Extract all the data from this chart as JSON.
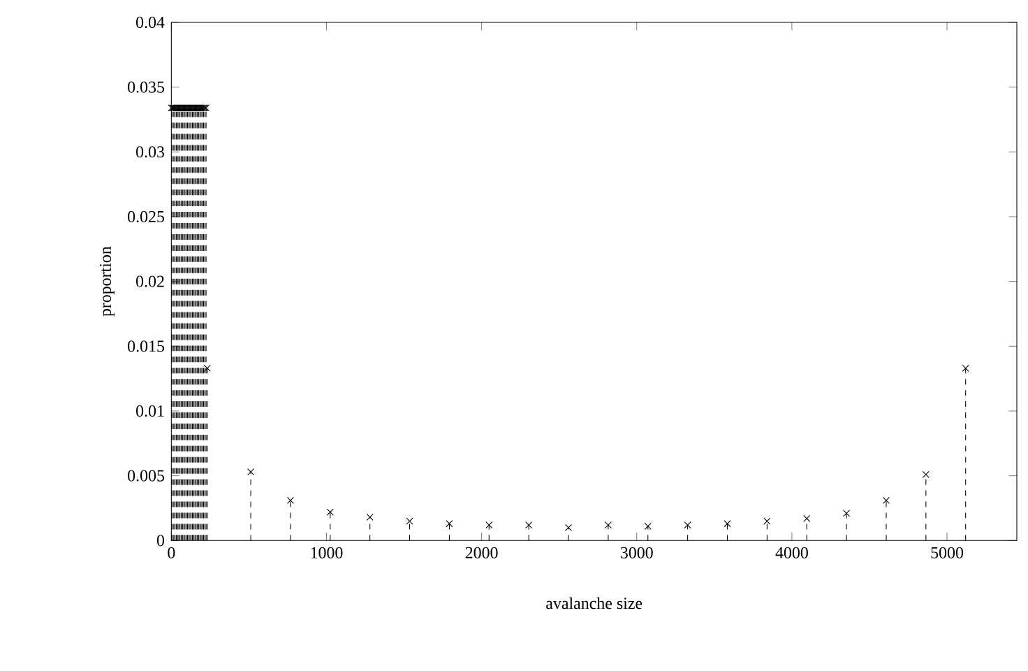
{
  "chart_data": {
    "type": "lollipop",
    "xlabel": "avalanche size",
    "ylabel": "proportion",
    "x": [
      0,
      8,
      16,
      24,
      32,
      40,
      48,
      56,
      64,
      72,
      80,
      88,
      96,
      104,
      112,
      120,
      128,
      136,
      144,
      152,
      160,
      168,
      176,
      184,
      192,
      200,
      208,
      216,
      224,
      232,
      512,
      768,
      1024,
      1280,
      1536,
      1792,
      2048,
      2304,
      2560,
      2816,
      3072,
      3328,
      3584,
      3840,
      4096,
      4352,
      4608,
      4864,
      5120
    ],
    "values": [
      0.0334,
      0.0334,
      0.0334,
      0.0334,
      0.0334,
      0.0334,
      0.0334,
      0.0334,
      0.0334,
      0.0334,
      0.0334,
      0.0334,
      0.0334,
      0.0334,
      0.0334,
      0.0334,
      0.0334,
      0.0334,
      0.0334,
      0.0334,
      0.0334,
      0.0334,
      0.0334,
      0.0334,
      0.0334,
      0.0334,
      0.0334,
      0.0334,
      0.0334,
      0.0133,
      0.0053,
      0.0031,
      0.0022,
      0.0018,
      0.0015,
      0.0013,
      0.0012,
      0.0012,
      0.001,
      0.0012,
      0.0011,
      0.0012,
      0.0013,
      0.0015,
      0.0017,
      0.0021,
      0.0031,
      0.0051,
      0.0133
    ],
    "color": "#000000",
    "marker": "cross",
    "line_style": "dashed",
    "xlim": [
      0,
      5450
    ],
    "ylim": [
      0,
      0.04
    ],
    "xticks": [
      0,
      1000,
      2000,
      3000,
      4000,
      5000
    ],
    "yticks": [
      0,
      0.005,
      0.01,
      0.015,
      0.02,
      0.025,
      0.03,
      0.035,
      0.04
    ]
  }
}
